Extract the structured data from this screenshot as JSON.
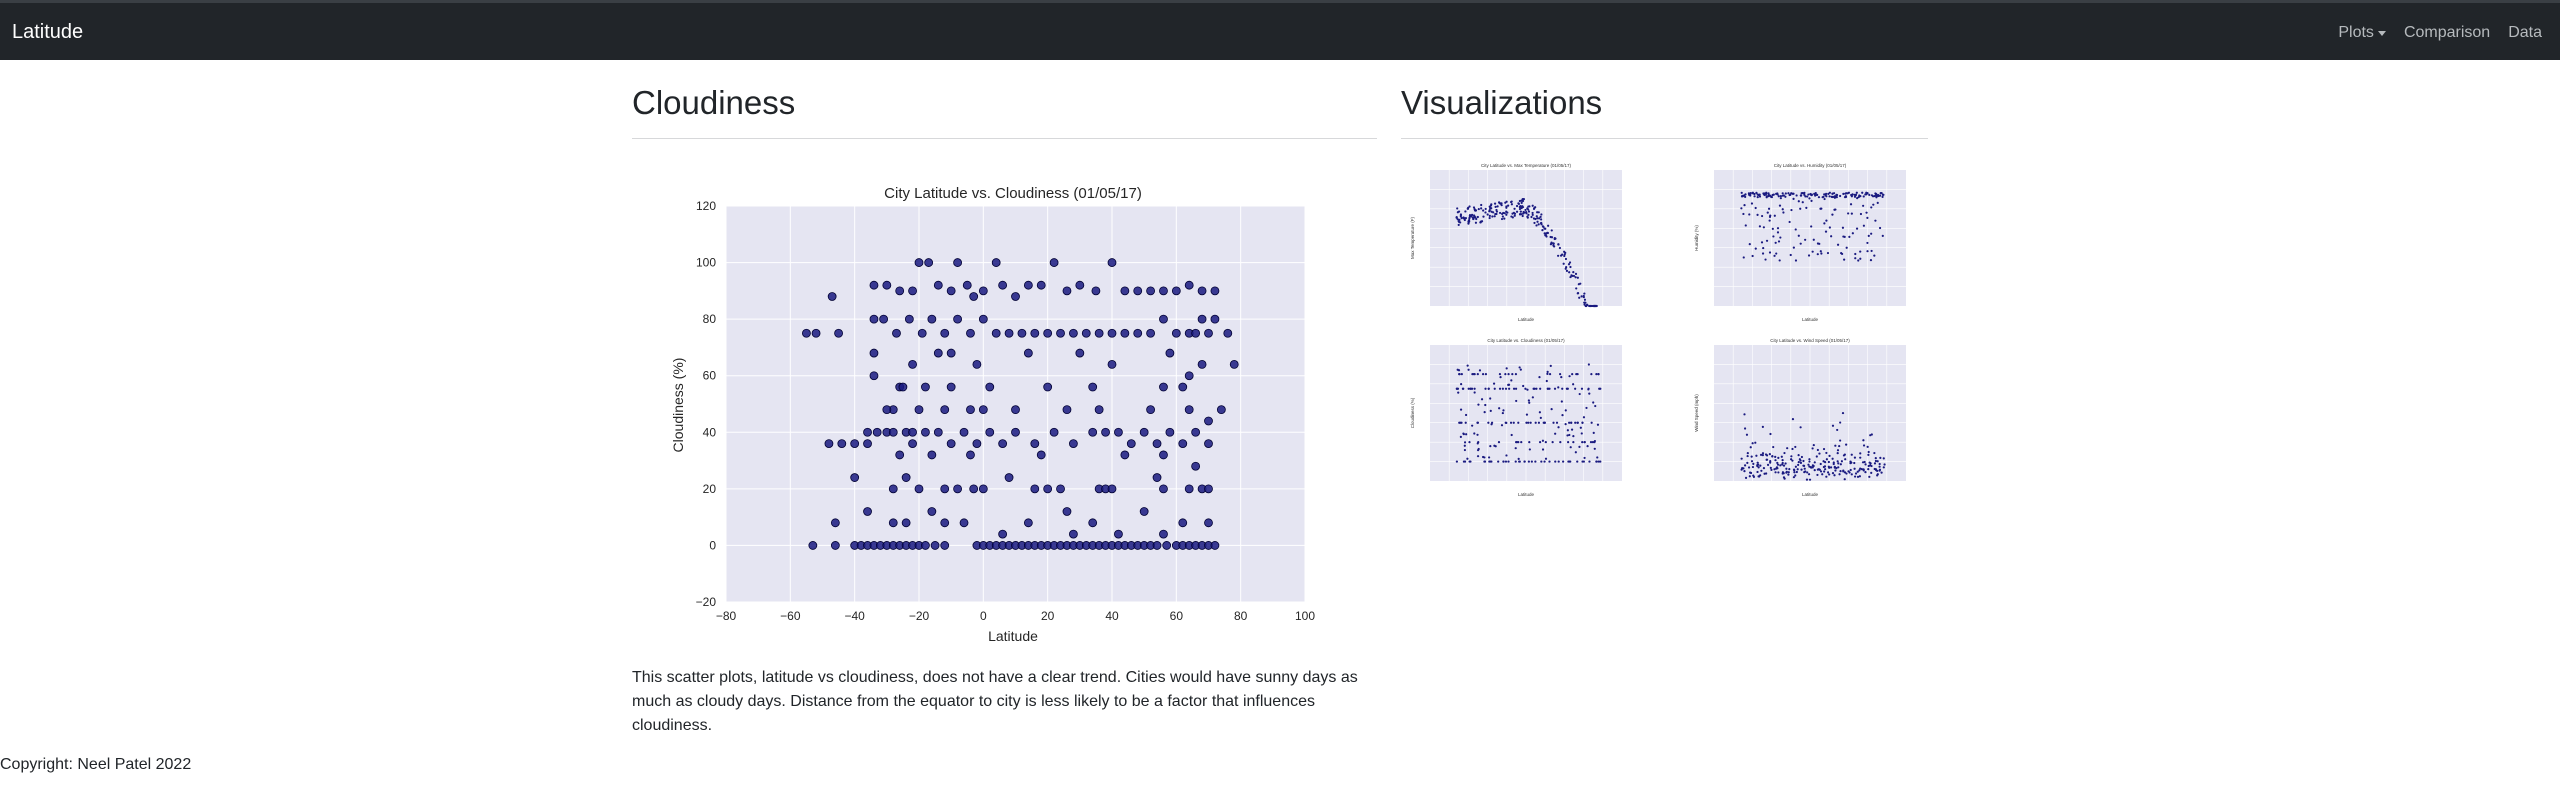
{
  "navbar": {
    "brand": "Latitude",
    "links": [
      {
        "label": "Plots",
        "dropdown": true
      },
      {
        "label": "Comparison"
      },
      {
        "label": "Data"
      }
    ]
  },
  "main": {
    "heading": "Cloudiness",
    "description": "This scatter plots, latitude vs cloudiness, does not have a clear trend. Cities would have sunny days as much as cloudy days. Distance from the equator to city is less likely to be a factor that influences cloudiness."
  },
  "sidebar": {
    "heading": "Visualizations",
    "thumbnails": [
      {
        "title": "City Latitude vs. Max Temperature (01/05/17)",
        "xlabel": "Latitude",
        "ylabel": "Max Temperature (F)",
        "ylim": [
          -20,
          120
        ]
      },
      {
        "title": "City Latitude vs. Humidity (01/05/17)",
        "xlabel": "Latitude",
        "ylabel": "Humidity (%)",
        "ylim": [
          0,
          120
        ]
      },
      {
        "title": "City Latitude vs. Cloudiness (01/05/17)",
        "xlabel": "Latitude",
        "ylabel": "Cloudiness (%)",
        "ylim": [
          -20,
          120
        ]
      },
      {
        "title": "City Latitude vs. Wind Speed (01/05/17)",
        "xlabel": "Latitude",
        "ylabel": "Wind Speed (mph)",
        "ylim": [
          0,
          40
        ]
      }
    ]
  },
  "footer": {
    "copyright": "Copyright: Neel Patel 2022"
  },
  "colors": {
    "navbar": "#212529",
    "plot_bg": "#e5e5f2",
    "marker": "#1a1a80",
    "marker_edge": "#000033"
  },
  "chart_data": {
    "type": "scatter",
    "title": "City Latitude vs. Cloudiness (01/05/17)",
    "xlabel": "Latitude",
    "ylabel": "Cloudiness (%)",
    "xlim": [
      -80,
      100
    ],
    "ylim": [
      -20,
      120
    ],
    "xticks": [
      -80,
      -60,
      -40,
      -20,
      0,
      20,
      40,
      60,
      80,
      100
    ],
    "yticks": [
      -20,
      0,
      20,
      40,
      60,
      80,
      100,
      120
    ],
    "grid": true,
    "points": [
      {
        "x": -55,
        "y": 75
      },
      {
        "x": -52,
        "y": 75
      },
      {
        "x": -45,
        "y": 75
      },
      {
        "x": -47,
        "y": 88
      },
      {
        "x": -48,
        "y": 36
      },
      {
        "x": -44,
        "y": 36
      },
      {
        "x": -40,
        "y": 24
      },
      {
        "x": -36,
        "y": 36
      },
      {
        "x": -33,
        "y": 40
      },
      {
        "x": -30,
        "y": 40
      },
      {
        "x": -28,
        "y": 48
      },
      {
        "x": -26,
        "y": 56
      },
      {
        "x": -24,
        "y": 40
      },
      {
        "x": -22,
        "y": 36
      },
      {
        "x": -20,
        "y": 100
      },
      {
        "x": -17,
        "y": 100
      },
      {
        "x": -14,
        "y": 92
      },
      {
        "x": -10,
        "y": 90
      },
      {
        "x": -8,
        "y": 100
      },
      {
        "x": -5,
        "y": 92
      },
      {
        "x": -3,
        "y": 88
      },
      {
        "x": 0,
        "y": 90
      },
      {
        "x": 4,
        "y": 100
      },
      {
        "x": 6,
        "y": 92
      },
      {
        "x": 10,
        "y": 88
      },
      {
        "x": 14,
        "y": 92
      },
      {
        "x": 18,
        "y": 92
      },
      {
        "x": 22,
        "y": 100
      },
      {
        "x": 26,
        "y": 90
      },
      {
        "x": 30,
        "y": 92
      },
      {
        "x": 35,
        "y": 90
      },
      {
        "x": 40,
        "y": 100
      },
      {
        "x": 44,
        "y": 90
      },
      {
        "x": 48,
        "y": 90
      },
      {
        "x": 52,
        "y": 90
      },
      {
        "x": 56,
        "y": 90
      },
      {
        "x": 60,
        "y": 90
      },
      {
        "x": 64,
        "y": 92
      },
      {
        "x": 68,
        "y": 90
      },
      {
        "x": 72,
        "y": 90
      },
      {
        "x": -34,
        "y": 92
      },
      {
        "x": -30,
        "y": 92
      },
      {
        "x": -26,
        "y": 90
      },
      {
        "x": -22,
        "y": 90
      },
      {
        "x": -34,
        "y": 80
      },
      {
        "x": -31,
        "y": 80
      },
      {
        "x": -27,
        "y": 75
      },
      {
        "x": -23,
        "y": 80
      },
      {
        "x": -19,
        "y": 75
      },
      {
        "x": -16,
        "y": 80
      },
      {
        "x": -12,
        "y": 75
      },
      {
        "x": -8,
        "y": 80
      },
      {
        "x": -4,
        "y": 75
      },
      {
        "x": 0,
        "y": 80
      },
      {
        "x": 4,
        "y": 75
      },
      {
        "x": 8,
        "y": 75
      },
      {
        "x": 12,
        "y": 75
      },
      {
        "x": 16,
        "y": 75
      },
      {
        "x": 20,
        "y": 75
      },
      {
        "x": 24,
        "y": 75
      },
      {
        "x": 28,
        "y": 75
      },
      {
        "x": 32,
        "y": 75
      },
      {
        "x": 36,
        "y": 75
      },
      {
        "x": 40,
        "y": 75
      },
      {
        "x": 44,
        "y": 75
      },
      {
        "x": 48,
        "y": 75
      },
      {
        "x": 52,
        "y": 75
      },
      {
        "x": 56,
        "y": 80
      },
      {
        "x": 60,
        "y": 75
      },
      {
        "x": 64,
        "y": 75
      },
      {
        "x": 68,
        "y": 80
      },
      {
        "x": 72,
        "y": 80
      },
      {
        "x": 76,
        "y": 75
      },
      {
        "x": 78,
        "y": 64
      },
      {
        "x": 70,
        "y": 75
      },
      {
        "x": 66,
        "y": 75
      },
      {
        "x": -34,
        "y": 68
      },
      {
        "x": -34,
        "y": 60
      },
      {
        "x": -22,
        "y": 64
      },
      {
        "x": -14,
        "y": 68
      },
      {
        "x": -10,
        "y": 68
      },
      {
        "x": -2,
        "y": 64
      },
      {
        "x": 14,
        "y": 68
      },
      {
        "x": 30,
        "y": 68
      },
      {
        "x": 40,
        "y": 64
      },
      {
        "x": 58,
        "y": 68
      },
      {
        "x": 64,
        "y": 60
      },
      {
        "x": 68,
        "y": 64
      },
      {
        "x": -25,
        "y": 56
      },
      {
        "x": -18,
        "y": 56
      },
      {
        "x": -10,
        "y": 56
      },
      {
        "x": 2,
        "y": 56
      },
      {
        "x": 20,
        "y": 56
      },
      {
        "x": 34,
        "y": 56
      },
      {
        "x": 56,
        "y": 56
      },
      {
        "x": 62,
        "y": 56
      },
      {
        "x": -30,
        "y": 48
      },
      {
        "x": -20,
        "y": 48
      },
      {
        "x": -12,
        "y": 48
      },
      {
        "x": -4,
        "y": 48
      },
      {
        "x": 0,
        "y": 48
      },
      {
        "x": 10,
        "y": 48
      },
      {
        "x": 26,
        "y": 48
      },
      {
        "x": 36,
        "y": 48
      },
      {
        "x": 52,
        "y": 48
      },
      {
        "x": 64,
        "y": 48
      },
      {
        "x": 70,
        "y": 44
      },
      {
        "x": 74,
        "y": 48
      },
      {
        "x": -40,
        "y": 36
      },
      {
        "x": -36,
        "y": 40
      },
      {
        "x": -28,
        "y": 40
      },
      {
        "x": -22,
        "y": 40
      },
      {
        "x": -18,
        "y": 40
      },
      {
        "x": -14,
        "y": 40
      },
      {
        "x": -10,
        "y": 36
      },
      {
        "x": -6,
        "y": 40
      },
      {
        "x": -2,
        "y": 36
      },
      {
        "x": 2,
        "y": 40
      },
      {
        "x": 6,
        "y": 36
      },
      {
        "x": 10,
        "y": 40
      },
      {
        "x": 16,
        "y": 36
      },
      {
        "x": 22,
        "y": 40
      },
      {
        "x": 28,
        "y": 36
      },
      {
        "x": 34,
        "y": 40
      },
      {
        "x": 38,
        "y": 40
      },
      {
        "x": 42,
        "y": 40
      },
      {
        "x": 46,
        "y": 36
      },
      {
        "x": 50,
        "y": 40
      },
      {
        "x": 54,
        "y": 36
      },
      {
        "x": 58,
        "y": 40
      },
      {
        "x": 62,
        "y": 36
      },
      {
        "x": 66,
        "y": 40
      },
      {
        "x": 70,
        "y": 36
      },
      {
        "x": -26,
        "y": 32
      },
      {
        "x": -16,
        "y": 32
      },
      {
        "x": -4,
        "y": 32
      },
      {
        "x": 18,
        "y": 32
      },
      {
        "x": 44,
        "y": 32
      },
      {
        "x": 56,
        "y": 32
      },
      {
        "x": 66,
        "y": 28
      },
      {
        "x": -28,
        "y": 20
      },
      {
        "x": -24,
        "y": 24
      },
      {
        "x": -20,
        "y": 20
      },
      {
        "x": -12,
        "y": 20
      },
      {
        "x": -8,
        "y": 20
      },
      {
        "x": -3,
        "y": 20
      },
      {
        "x": 0,
        "y": 20
      },
      {
        "x": 8,
        "y": 24
      },
      {
        "x": 16,
        "y": 20
      },
      {
        "x": 20,
        "y": 20
      },
      {
        "x": 24,
        "y": 20
      },
      {
        "x": 36,
        "y": 20
      },
      {
        "x": 38,
        "y": 20
      },
      {
        "x": 40,
        "y": 20
      },
      {
        "x": 54,
        "y": 24
      },
      {
        "x": 56,
        "y": 20
      },
      {
        "x": 64,
        "y": 20
      },
      {
        "x": 68,
        "y": 20
      },
      {
        "x": 70,
        "y": 20
      },
      {
        "x": -36,
        "y": 12
      },
      {
        "x": -28,
        "y": 8
      },
      {
        "x": -24,
        "y": 8
      },
      {
        "x": -16,
        "y": 12
      },
      {
        "x": -12,
        "y": 8
      },
      {
        "x": -6,
        "y": 8
      },
      {
        "x": 6,
        "y": 4
      },
      {
        "x": 14,
        "y": 8
      },
      {
        "x": 26,
        "y": 12
      },
      {
        "x": 28,
        "y": 4
      },
      {
        "x": 34,
        "y": 8
      },
      {
        "x": 42,
        "y": 4
      },
      {
        "x": 50,
        "y": 12
      },
      {
        "x": 56,
        "y": 4
      },
      {
        "x": 62,
        "y": 8
      },
      {
        "x": 70,
        "y": 8
      },
      {
        "x": -46,
        "y": 8
      },
      {
        "x": -53,
        "y": 0
      },
      {
        "x": -46,
        "y": 0
      },
      {
        "x": -40,
        "y": 0
      },
      {
        "x": -38,
        "y": 0
      },
      {
        "x": -36,
        "y": 0
      },
      {
        "x": -34,
        "y": 0
      },
      {
        "x": -32,
        "y": 0
      },
      {
        "x": -30,
        "y": 0
      },
      {
        "x": -28,
        "y": 0
      },
      {
        "x": -26,
        "y": 0
      },
      {
        "x": -24,
        "y": 0
      },
      {
        "x": -22,
        "y": 0
      },
      {
        "x": -20,
        "y": 0
      },
      {
        "x": -18,
        "y": 0
      },
      {
        "x": -15,
        "y": 0
      },
      {
        "x": -12,
        "y": 0
      },
      {
        "x": -2,
        "y": 0
      },
      {
        "x": 0,
        "y": 0
      },
      {
        "x": 2,
        "y": 0
      },
      {
        "x": 4,
        "y": 0
      },
      {
        "x": 6,
        "y": 0
      },
      {
        "x": 8,
        "y": 0
      },
      {
        "x": 10,
        "y": 0
      },
      {
        "x": 12,
        "y": 0
      },
      {
        "x": 14,
        "y": 0
      },
      {
        "x": 16,
        "y": 0
      },
      {
        "x": 18,
        "y": 0
      },
      {
        "x": 20,
        "y": 0
      },
      {
        "x": 22,
        "y": 0
      },
      {
        "x": 24,
        "y": 0
      },
      {
        "x": 26,
        "y": 0
      },
      {
        "x": 28,
        "y": 0
      },
      {
        "x": 30,
        "y": 0
      },
      {
        "x": 32,
        "y": 0
      },
      {
        "x": 34,
        "y": 0
      },
      {
        "x": 36,
        "y": 0
      },
      {
        "x": 38,
        "y": 0
      },
      {
        "x": 40,
        "y": 0
      },
      {
        "x": 42,
        "y": 0
      },
      {
        "x": 44,
        "y": 0
      },
      {
        "x": 46,
        "y": 0
      },
      {
        "x": 48,
        "y": 0
      },
      {
        "x": 50,
        "y": 0
      },
      {
        "x": 52,
        "y": 0
      },
      {
        "x": 54,
        "y": 0
      },
      {
        "x": 57,
        "y": 0
      },
      {
        "x": 60,
        "y": 0
      },
      {
        "x": 62,
        "y": 0
      },
      {
        "x": 64,
        "y": 0
      },
      {
        "x": 66,
        "y": 0
      },
      {
        "x": 68,
        "y": 0
      },
      {
        "x": 70,
        "y": 0
      },
      {
        "x": 72,
        "y": 0
      }
    ]
  }
}
